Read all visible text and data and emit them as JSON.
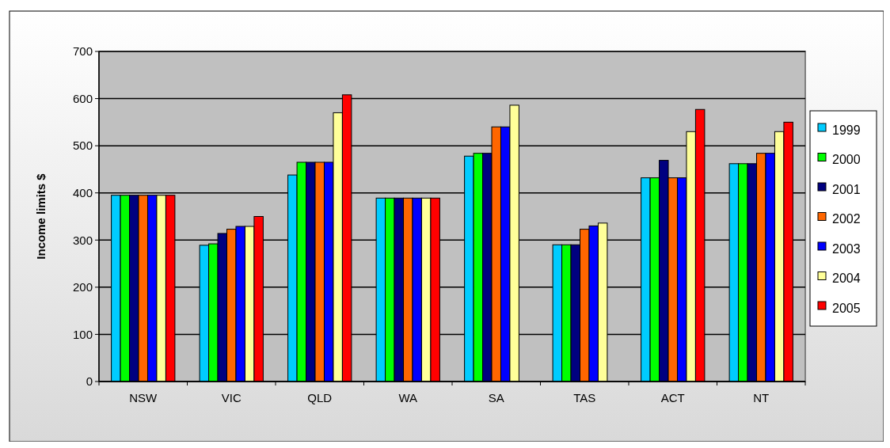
{
  "chart_data": {
    "type": "bar",
    "ylabel": "Income limits $",
    "categories": [
      "NSW",
      "VIC",
      "QLD",
      "WA",
      "SA",
      "TAS",
      "ACT",
      "NT"
    ],
    "series": [
      {
        "name": "1999",
        "color": "#00ccff",
        "values": [
          395,
          289,
          438,
          389,
          478,
          290,
          432,
          462
        ]
      },
      {
        "name": "2000",
        "color": "#00ff00",
        "values": [
          395,
          292,
          465,
          389,
          484,
          290,
          432,
          462
        ]
      },
      {
        "name": "2001",
        "color": "#000080",
        "values": [
          395,
          314,
          465,
          389,
          484,
          290,
          469,
          462
        ]
      },
      {
        "name": "2002",
        "color": "#ff6600",
        "values": [
          395,
          323,
          465,
          389,
          540,
          323,
          432,
          484
        ]
      },
      {
        "name": "2003",
        "color": "#0000ff",
        "values": [
          395,
          329,
          465,
          389,
          540,
          330,
          432,
          484
        ]
      },
      {
        "name": "2004",
        "color": "#ffff99",
        "values": [
          395,
          329,
          570,
          389,
          586,
          336,
          530,
          530
        ]
      },
      {
        "name": "2005",
        "color": "#ff0000",
        "values": [
          395,
          350,
          608,
          389,
          null,
          null,
          577,
          550
        ]
      }
    ],
    "ylim": [
      0,
      700
    ],
    "yticks": [
      0,
      100,
      200,
      300,
      400,
      500,
      600,
      700
    ],
    "grid": "y",
    "legend": "right"
  }
}
